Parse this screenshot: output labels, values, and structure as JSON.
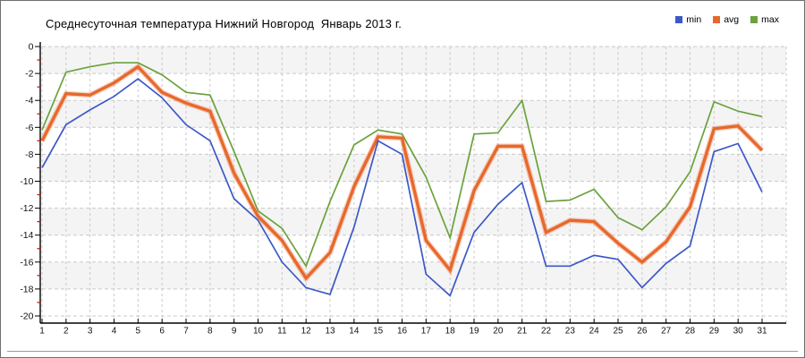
{
  "chart_data": {
    "type": "line",
    "title": "Среднесуточная температура Нижний Новгород  Январь 2013 г.",
    "xlabel": "",
    "ylabel": "",
    "x": [
      1,
      2,
      3,
      4,
      5,
      6,
      7,
      8,
      9,
      10,
      11,
      12,
      13,
      14,
      15,
      16,
      17,
      18,
      19,
      20,
      21,
      22,
      23,
      24,
      25,
      26,
      27,
      28,
      29,
      30,
      31
    ],
    "series": [
      {
        "name": "min",
        "color": "#3c58c8",
        "values": [
          -9.0,
          -5.8,
          -4.7,
          -3.7,
          -2.4,
          -3.8,
          -5.8,
          -7.0,
          -11.3,
          -12.9,
          -16.0,
          -17.9,
          -18.4,
          -13.4,
          -7.0,
          -8.0,
          -16.9,
          -18.5,
          -13.8,
          -11.7,
          -10.1,
          -16.3,
          -16.3,
          -15.5,
          -15.8,
          -17.9,
          -16.1,
          -14.8,
          -7.8,
          -7.2,
          -10.8
        ]
      },
      {
        "name": "avg",
        "color": "#e8682c",
        "values": [
          -7.0,
          -3.5,
          -3.6,
          -2.7,
          -1.5,
          -3.4,
          -4.2,
          -4.8,
          -9.4,
          -12.6,
          -14.4,
          -17.2,
          -15.3,
          -10.4,
          -6.7,
          -6.8,
          -14.4,
          -16.6,
          -10.7,
          -7.4,
          -7.4,
          -13.8,
          -12.9,
          -13.0,
          -14.6,
          -16.0,
          -14.5,
          -11.9,
          -6.1,
          -5.9,
          -7.7
        ]
      },
      {
        "name": "max",
        "color": "#6ba23c",
        "values": [
          -6.2,
          -1.9,
          -1.5,
          -1.2,
          -1.2,
          -2.1,
          -3.4,
          -3.6,
          -7.8,
          -12.2,
          -13.5,
          -16.3,
          -11.5,
          -7.3,
          -6.2,
          -6.5,
          -9.7,
          -14.2,
          -6.5,
          -6.4,
          -4.0,
          -11.5,
          -11.4,
          -10.6,
          -12.7,
          -13.6,
          -11.9,
          -9.3,
          -4.1,
          -4.8,
          -5.2
        ]
      }
    ],
    "ylim": [
      -20,
      0
    ],
    "y_tick_step": 2,
    "grid": true,
    "legend_position": "top-right"
  },
  "style": {
    "band_color": "#f4f4f4",
    "grid_color": "#c9c9c9",
    "axis_color": "#000000",
    "minor_tick_color": "#dd1111",
    "label_color": "#111111"
  }
}
